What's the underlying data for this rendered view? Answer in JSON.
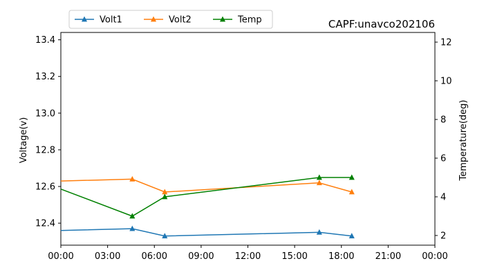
{
  "chart_data": {
    "type": "line",
    "title": "CAPF:unavco202106",
    "xlabel": "",
    "ylabel": "Voltage(v)",
    "y2label": "Temperature(deg)",
    "xlim": [
      "00:00",
      "24:00"
    ],
    "ylim": [
      12.28,
      13.44
    ],
    "y2lim": [
      1.5,
      12.5
    ],
    "xticks": [
      "00:00",
      "03:00",
      "06:00",
      "09:00",
      "12:00",
      "15:00",
      "18:00",
      "21:00",
      "00:00"
    ],
    "yticks": [
      "12.4",
      "12.6",
      "12.8",
      "13.0",
      "13.2",
      "13.4"
    ],
    "y2ticks": [
      "2",
      "4",
      "6",
      "8",
      "10",
      "12"
    ],
    "grid": false,
    "legend_position": "top-left",
    "series": [
      {
        "name": "Volt1",
        "axis": "left",
        "color": "#1f77b4",
        "marker": "triangle",
        "x": [
          "00:00",
          "04:35",
          "06:40",
          "16:35",
          "18:40"
        ],
        "y": [
          12.36,
          12.37,
          12.33,
          12.35,
          12.33
        ],
        "markers": [
          false,
          true,
          true,
          true,
          true
        ]
      },
      {
        "name": "Volt2",
        "axis": "left",
        "color": "#ff7f0e",
        "marker": "triangle",
        "x": [
          "00:00",
          "04:35",
          "06:40",
          "16:35",
          "18:40"
        ],
        "y": [
          12.63,
          12.64,
          12.57,
          12.62,
          12.57
        ],
        "markers": [
          false,
          true,
          true,
          true,
          true
        ]
      },
      {
        "name": "Temp",
        "axis": "right",
        "color": "#008000",
        "marker": "triangle",
        "x": [
          "00:00",
          "04:35",
          "06:40",
          "16:35",
          "18:40"
        ],
        "y": [
          4.4,
          3.0,
          4.0,
          5.0,
          5.0
        ],
        "markers": [
          false,
          true,
          true,
          true,
          true
        ]
      }
    ]
  }
}
